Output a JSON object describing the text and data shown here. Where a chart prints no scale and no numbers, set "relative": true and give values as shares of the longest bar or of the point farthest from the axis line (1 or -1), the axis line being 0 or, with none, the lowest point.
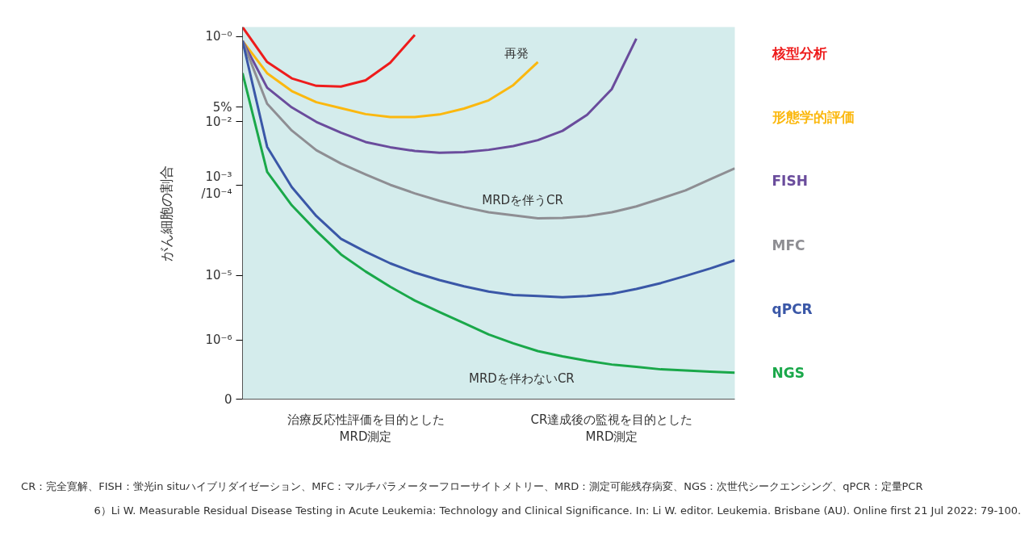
{
  "chart_data": {
    "type": "line",
    "ylabel": "がん細胞の割合",
    "relative": true,
    "categories": [
      null,
      null,
      null,
      null,
      null,
      null,
      null,
      null,
      null,
      null,
      null,
      null,
      null,
      null,
      null,
      null,
      null,
      null,
      null,
      null,
      null
    ],
    "legend": "right",
    "line_style": "solid",
    "series": [
      {
        "name": "核型分析",
        "color": "#ee1c1c",
        "values": [
          1.0,
          0.906,
          0.862,
          0.842,
          0.84,
          0.857,
          0.904,
          0.979,
          null,
          null,
          null,
          null,
          null,
          null,
          null,
          null,
          null,
          null,
          null,
          null,
          null
        ]
      },
      {
        "name": "形態学的評価",
        "color": "#fbb80f",
        "values": [
          0.963,
          0.876,
          0.828,
          0.798,
          0.782,
          0.766,
          0.758,
          0.758,
          0.765,
          0.781,
          0.803,
          0.844,
          0.906,
          null,
          null,
          null,
          null,
          null,
          null,
          null,
          null
        ]
      },
      {
        "name": "FISH",
        "color": "#6a4c9c",
        "values": [
          0.963,
          0.837,
          0.784,
          0.745,
          0.716,
          0.691,
          0.677,
          0.667,
          0.662,
          0.664,
          0.67,
          0.68,
          0.696,
          0.721,
          0.764,
          0.833,
          0.969,
          null,
          null,
          null,
          null
        ]
      },
      {
        "name": "MFC",
        "color": "#8e8e93",
        "values": [
          0.963,
          0.794,
          0.722,
          0.669,
          0.633,
          0.604,
          0.576,
          0.553,
          0.533,
          0.516,
          0.502,
          0.494,
          0.486,
          0.487,
          0.492,
          0.502,
          0.518,
          0.539,
          0.561,
          0.591,
          0.62
        ]
      },
      {
        "name": "qPCR",
        "color": "#3a57a7",
        "values": [
          0.963,
          0.678,
          0.57,
          0.492,
          0.431,
          0.396,
          0.365,
          0.34,
          0.32,
          0.303,
          0.289,
          0.28,
          0.277,
          0.274,
          0.277,
          0.283,
          0.296,
          0.312,
          0.331,
          0.351,
          0.373
        ]
      },
      {
        "name": "NGS",
        "color": "#1aa84a",
        "values": [
          0.876,
          0.611,
          0.521,
          0.452,
          0.389,
          0.343,
          0.302,
          0.265,
          0.234,
          0.204,
          0.174,
          0.15,
          0.129,
          0.115,
          0.103,
          0.093,
          0.087,
          0.08,
          0.077,
          0.074,
          0.071
        ]
      }
    ],
    "annotations": [
      "0",
      "10⁻⁶",
      "10⁻⁵",
      "10⁻³\n/10⁻⁴",
      "10⁻²",
      "5%",
      "10⁻⁰",
      "治療反応性評価を目的とした\nMRD測定",
      "CR達成後の監視を目的とした\nMRD測定",
      "再発",
      "MRDを伴うCR",
      "MRDを伴わないCR",
      "CR：完全寛解、FISH：蛍光in situハイブリダイゼーション、MFC：マルチパラメーターフローサイトメトリー、MRD：測定可能残存病変、NGS：次世代シークエンシング、qPCR：定量PCR",
      "6）Li W. Measurable Residual Disease Testing in Acute Leukemia: Technology and Clinical Significance. In: Li W. editor. Leukemia. Brisbane (AU). Online first 21 Jul 2022: 79-100."
    ]
  }
}
